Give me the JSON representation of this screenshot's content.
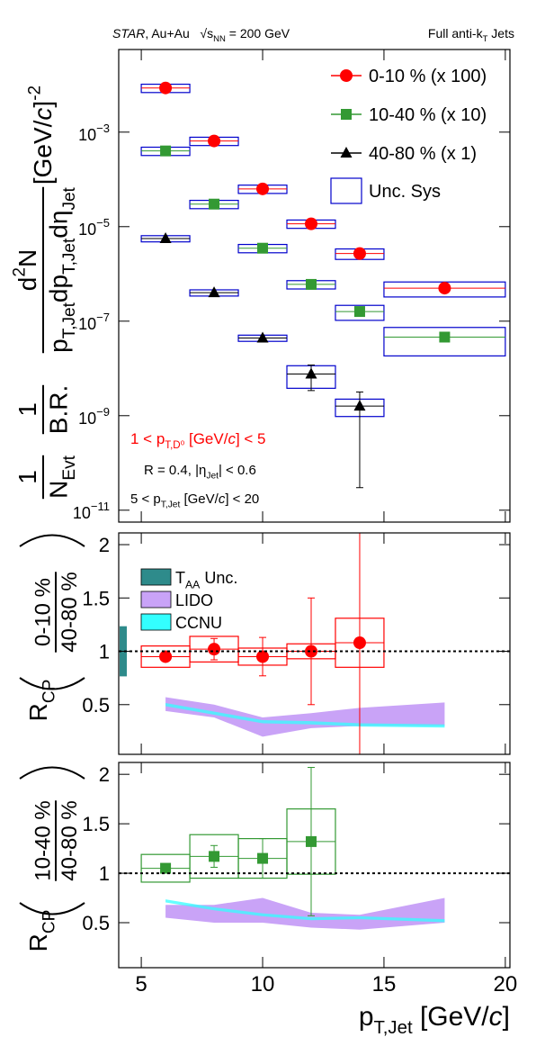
{
  "header": {
    "left": [
      {
        "text": "STAR",
        "style": "italic"
      },
      {
        "text": ", Au+Au   √s"
      },
      {
        "text": "NN",
        "pos": "sub"
      },
      {
        "text": " = 200 GeV"
      }
    ],
    "right": [
      {
        "text": "Full anti-k"
      },
      {
        "text": "T",
        "pos": "sub"
      },
      {
        "text": " Jets"
      }
    ]
  },
  "chart_data": [
    {
      "type": "scatter",
      "yscale": "log",
      "xlim": [
        4.07,
        20.19
      ],
      "xticks": [
        5,
        10,
        15,
        20
      ],
      "ylim": [
        5.6e-12,
        0.056
      ],
      "yticks": [
        {
          "value": 0.001,
          "label": "10",
          "exponent": "−3"
        },
        {
          "value": 1e-05,
          "label": "10",
          "exponent": "−5"
        },
        {
          "value": 1e-07,
          "label": "10",
          "exponent": "−7"
        },
        {
          "value": 1e-09,
          "label": "10",
          "exponent": "−9"
        },
        {
          "value": 1e-11,
          "label": "10",
          "exponent": "−11"
        }
      ],
      "ylabel": {
        "fractions": [
          {
            "num": [
              {
                "text": "1"
              }
            ],
            "den": [
              {
                "text": "N"
              },
              {
                "text": "Evt",
                "pos": "sub"
              }
            ]
          },
          {
            "num": [
              {
                "text": "1"
              }
            ],
            "den": [
              {
                "text": "B.R."
              }
            ]
          },
          {
            "num": [
              {
                "text": "d"
              },
              {
                "text": "2",
                "pos": "sup"
              },
              {
                "text": "N"
              }
            ],
            "den": [
              {
                "text": "p"
              },
              {
                "text": "T,Jet",
                "pos": "sub"
              },
              {
                "text": "dp"
              },
              {
                "text": "T,Jet",
                "pos": "sub"
              },
              {
                "text": "dη"
              },
              {
                "text": "Jet",
                "pos": "sub"
              }
            ]
          }
        ],
        "unit": [
          {
            "text": "[GeV/"
          },
          {
            "text": "c",
            "style": "italic"
          },
          {
            "text": "]"
          },
          {
            "text": "-2",
            "pos": "sup"
          }
        ]
      },
      "x": [
        6,
        8,
        10,
        12,
        14,
        17.5
      ],
      "bin_edges": [
        5,
        7,
        9,
        11,
        13,
        15,
        20
      ],
      "box_color": "#0000cc",
      "sys_label": "Unc. Sys",
      "series": [
        {
          "name": "0-10 % (x 100)",
          "color": "#ff0000",
          "marker": "circle",
          "values": [
            0.0086,
            0.00065,
            6.3e-05,
            1.15e-05,
            2.7e-06,
            5e-07
          ],
          "sys_rel": [
            0.2,
            0.2,
            0.2,
            0.2,
            0.25,
            0.35
          ]
        },
        {
          "name": "10-40 % (x 10)",
          "color": "#339933",
          "marker": "square",
          "values": [
            0.0004,
            3e-05,
            3.5e-06,
            6e-07,
            1.6e-07,
            4.6e-08
          ],
          "sys_rel": [
            0.2,
            0.2,
            0.2,
            0.2,
            0.35,
            0.6
          ]
        },
        {
          "name": "40-80 % (x 1)",
          "color": "#000000",
          "marker": "triangle",
          "values": [
            5.6e-06,
            4e-07,
            4.4e-08,
            7.6e-09,
            1.6e-09,
            null
          ],
          "sys_rel": [
            0.15,
            0.15,
            0.15,
            0.5,
            0.4,
            null
          ],
          "errors": [
            null,
            null,
            null,
            4.2e-09,
            1.57e-09,
            null
          ]
        }
      ],
      "annotations": [
        {
          "color": "#ff0000",
          "segments": [
            {
              "text": "1 < p"
            },
            {
              "text": "T,D⁰",
              "pos": "sub"
            },
            {
              "text": " [GeV/"
            },
            {
              "text": "c",
              "style": "italic"
            },
            {
              "text": "] < 5"
            }
          ]
        },
        {
          "color": "#000000",
          "segments": [
            {
              "text": "R = 0.4, |η"
            },
            {
              "text": "Jet",
              "pos": "sub"
            },
            {
              "text": "| < 0.6"
            }
          ]
        },
        {
          "color": "#000000",
          "segments": [
            {
              "text": "5 < p"
            },
            {
              "text": "T,Jet",
              "pos": "sub"
            },
            {
              "text": " [GeV/"
            },
            {
              "text": "c",
              "style": "italic"
            },
            {
              "text": "] < 20"
            }
          ]
        }
      ]
    },
    {
      "type": "scatter",
      "xlim": [
        4.07,
        20.19
      ],
      "xticks": [
        5,
        10,
        15,
        20
      ],
      "ylim": [
        0.034,
        2.11
      ],
      "yticks": [
        0.5,
        1,
        1.5,
        2
      ],
      "ylabel": {
        "main": [
          {
            "text": "R"
          },
          {
            "text": "CP",
            "pos": "sub"
          }
        ],
        "num": "0-10 %",
        "den": "40-80 %"
      },
      "reference_line": 1,
      "x": [
        6,
        8,
        10,
        12,
        14,
        17.5
      ],
      "bin_edges": [
        5,
        7,
        9,
        11,
        13,
        15,
        20
      ],
      "bands": [
        {
          "name": [
            {
              "text": "T"
            },
            {
              "text": "AA",
              "pos": "sub"
            },
            {
              "text": " Unc."
            }
          ],
          "color": "#2e8b8b",
          "kind": "box",
          "low": 0.765,
          "high": 1.235
        },
        {
          "name": "LIDO",
          "color": "#c9a3f7",
          "lower": [
            0.44,
            0.38,
            0.2,
            0.28,
            0.3,
            0.3
          ],
          "upper": [
            0.57,
            0.5,
            0.38,
            0.42,
            0.47,
            0.52
          ]
        },
        {
          "name": "CCNU",
          "color": "#33ffff",
          "lower": [
            0.485,
            0.405,
            0.325,
            0.315,
            0.295,
            0.285
          ],
          "upper": [
            0.515,
            0.435,
            0.355,
            0.345,
            0.325,
            0.315
          ]
        }
      ],
      "series": [
        {
          "color": "#ff0000",
          "marker": "circle",
          "values": [
            0.95,
            1.02,
            0.95,
            1.0,
            1.08,
            null
          ],
          "errors": [
            0.03,
            0.1,
            0.18,
            0.5,
            1.06,
            null
          ],
          "sys": [
            0.1,
            0.12,
            0.08,
            0.07,
            0.23,
            null
          ]
        }
      ]
    },
    {
      "type": "scatter",
      "xlim": [
        4.07,
        20.19
      ],
      "xticks": [
        5,
        10,
        15,
        20
      ],
      "xlabel": [
        {
          "text": "p"
        },
        {
          "text": "T,Jet",
          "pos": "sub"
        },
        {
          "text": " [GeV/"
        },
        {
          "text": "c",
          "style": "italic"
        },
        {
          "text": "]"
        }
      ],
      "ylim": [
        0.045,
        2.12
      ],
      "yticks": [
        0.5,
        1,
        1.5,
        2
      ],
      "ylabel": {
        "main": [
          {
            "text": "R"
          },
          {
            "text": "CP",
            "pos": "sub"
          }
        ],
        "num": "10-40 %",
        "den": "40-80 %"
      },
      "reference_line": 1,
      "x": [
        6,
        8,
        10,
        12,
        14,
        17.5
      ],
      "bin_edges": [
        5,
        7,
        9,
        11,
        13,
        15,
        20
      ],
      "bands": [
        {
          "color": "#c9a3f7",
          "lower": [
            0.55,
            0.5,
            0.5,
            0.45,
            0.43,
            0.5
          ],
          "upper": [
            0.68,
            0.68,
            0.75,
            0.6,
            0.58,
            0.75
          ]
        },
        {
          "color": "#33ffff",
          "lower": [
            0.705,
            0.625,
            0.565,
            0.525,
            0.535,
            0.505
          ],
          "upper": [
            0.735,
            0.655,
            0.595,
            0.555,
            0.565,
            0.535
          ]
        }
      ],
      "series": [
        {
          "color": "#339933",
          "marker": "square",
          "values": [
            1.05,
            1.17,
            1.15,
            1.32,
            null,
            null
          ],
          "errors": [
            0.03,
            0.11,
            0.2,
            0.75,
            null,
            null
          ],
          "sys": [
            0.14,
            0.22,
            0.2,
            0.33,
            null,
            null
          ]
        }
      ]
    }
  ]
}
